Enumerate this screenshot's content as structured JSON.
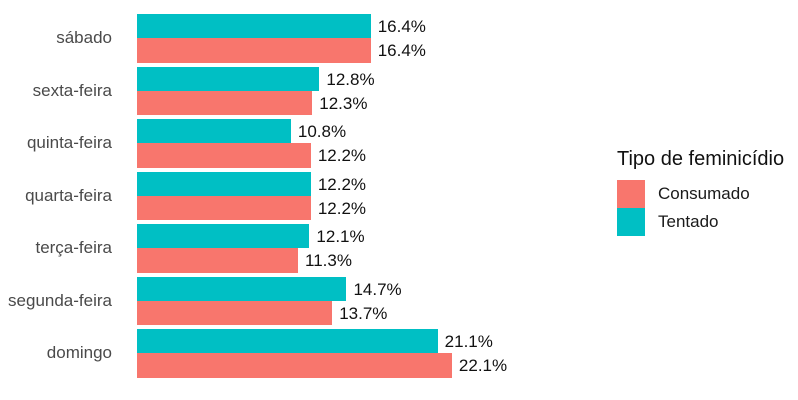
{
  "chart_data": {
    "type": "bar",
    "orientation": "horizontal",
    "title": "",
    "xlabel": "",
    "ylabel": "",
    "grid": false,
    "data_labels": true,
    "value_suffix": "%",
    "xlim": [
      0,
      24
    ],
    "legend_position": "right",
    "categories": [
      "sábado",
      "sexta-feira",
      "quinta-feira",
      "quarta-feira",
      "terça-feira",
      "segunda-feira",
      "domingo"
    ],
    "series": [
      {
        "name": "Consumado",
        "color": "#F8766D",
        "values": [
          16.4,
          12.3,
          12.2,
          12.2,
          11.3,
          13.7,
          22.1
        ]
      },
      {
        "name": "Tentado",
        "color": "#00BFC4",
        "values": [
          16.4,
          12.8,
          10.8,
          12.2,
          12.1,
          14.7,
          21.1
        ]
      }
    ],
    "series_order_top_to_bottom": [
      "Tentado",
      "Consumado"
    ]
  },
  "legend": {
    "title": "Tipo de feminicídio",
    "items": [
      {
        "label": "Consumado",
        "color": "#F8766D"
      },
      {
        "label": "Tentado",
        "color": "#00BFC4"
      }
    ]
  },
  "colors": {
    "background": "#FFFFFF",
    "axis_label_text": "#4A4A4A",
    "value_label_text": "#111111"
  }
}
